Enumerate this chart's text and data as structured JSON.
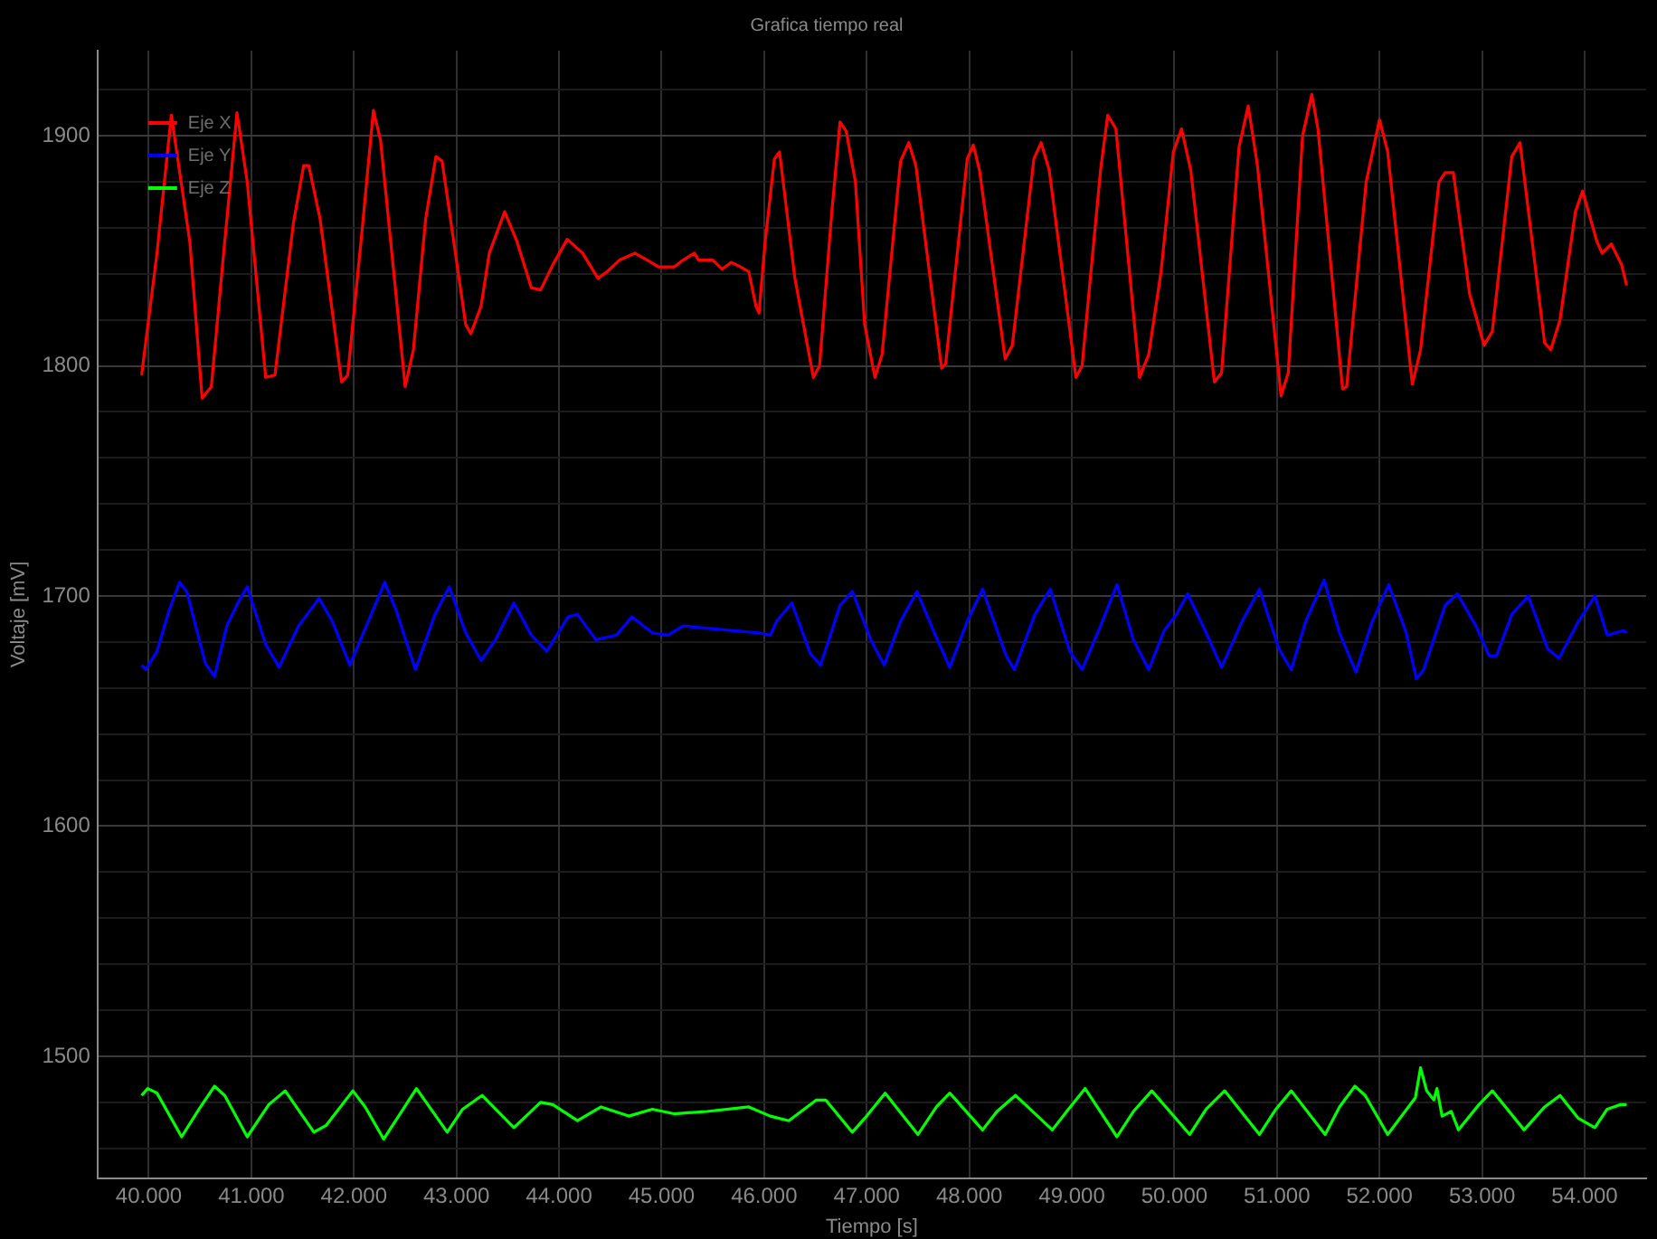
{
  "chart_data": {
    "type": "line",
    "title": "Grafica tiempo real",
    "xlabel": "Tiempo [s]",
    "ylabel": "Voltaje [mV]",
    "xlim": [
      39.5,
      54.6
    ],
    "ylim": [
      1447,
      1937
    ],
    "xticks": [
      {
        "value": 40,
        "label": "40.000"
      },
      {
        "value": 41,
        "label": "41.000"
      },
      {
        "value": 42,
        "label": "42.000"
      },
      {
        "value": 43,
        "label": "43.000"
      },
      {
        "value": 44,
        "label": "44.000"
      },
      {
        "value": 45,
        "label": "45.000"
      },
      {
        "value": 46,
        "label": "46.000"
      },
      {
        "value": 47,
        "label": "47.000"
      },
      {
        "value": 48,
        "label": "48.000"
      },
      {
        "value": 49,
        "label": "49.000"
      },
      {
        "value": 50,
        "label": "50.000"
      },
      {
        "value": 51,
        "label": "51.000"
      },
      {
        "value": 52,
        "label": "52.000"
      },
      {
        "value": 53,
        "label": "53.000"
      },
      {
        "value": 54,
        "label": "54.000"
      }
    ],
    "yticks": [
      {
        "value": 1460,
        "label": null
      },
      {
        "value": 1480,
        "label": null
      },
      1500,
      {
        "value": 1520,
        "label": null
      },
      {
        "value": 1540,
        "label": null
      },
      {
        "value": 1560,
        "label": null
      },
      {
        "value": 1580,
        "label": null
      },
      1600,
      {
        "value": 1620,
        "label": null
      },
      {
        "value": 1640,
        "label": null
      },
      {
        "value": 1660,
        "label": null
      },
      {
        "value": 1680,
        "label": null
      },
      1700,
      {
        "value": 1720,
        "label": null
      },
      {
        "value": 1740,
        "label": null
      },
      {
        "value": 1760,
        "label": null
      },
      {
        "value": 1780,
        "label": null
      },
      1800,
      {
        "value": 1820,
        "label": null
      },
      {
        "value": 1840,
        "label": null
      },
      {
        "value": 1860,
        "label": null
      },
      {
        "value": 1880,
        "label": null
      },
      1900,
      {
        "value": 1920,
        "label": null
      }
    ],
    "grid": true,
    "legend": "top left",
    "marker": "none",
    "line_style": "solid",
    "series": [
      {
        "name": "Eje X",
        "color": "#ff0000",
        "x": [
          39.93,
          40.08,
          40.22,
          40.4,
          40.52,
          40.61,
          40.73,
          40.86,
          40.96,
          41.14,
          41.23,
          41.41,
          41.51,
          41.56,
          41.67,
          41.88,
          41.94,
          42.08,
          42.19,
          42.26,
          42.5,
          42.58,
          42.7,
          42.8,
          42.86,
          43.09,
          43.14,
          43.24,
          43.32,
          43.47,
          43.59,
          43.73,
          43.82,
          43.94,
          44.08,
          44.23,
          44.38,
          44.47,
          44.59,
          44.74,
          44.86,
          44.97,
          45.12,
          45.21,
          45.32,
          45.36,
          45.5,
          45.59,
          45.68,
          45.77,
          45.85,
          45.92,
          45.95,
          46.01,
          46.1,
          46.15,
          46.3,
          46.48,
          46.54,
          46.66,
          46.74,
          46.8,
          46.89,
          46.98,
          47.08,
          47.15,
          47.33,
          47.41,
          47.48,
          47.73,
          47.77,
          47.98,
          48.04,
          48.1,
          48.35,
          48.42,
          48.63,
          48.7,
          48.78,
          49.04,
          49.1,
          49.28,
          49.35,
          49.43,
          49.66,
          49.75,
          49.87,
          49.99,
          50.07,
          50.16,
          50.39,
          50.46,
          50.63,
          50.72,
          50.81,
          51.04,
          51.11,
          51.25,
          51.34,
          51.4,
          51.64,
          51.68,
          51.87,
          52.0,
          52.08,
          52.32,
          52.4,
          52.58,
          52.64,
          52.72,
          52.88,
          53.02,
          53.1,
          53.29,
          53.37,
          53.61,
          53.67,
          53.76,
          53.91,
          53.98,
          54.12,
          54.17,
          54.26,
          54.36,
          54.41
        ],
        "values": [
          1796,
          1849,
          1909,
          1854,
          1786,
          1791,
          1849,
          1910,
          1880,
          1795,
          1796,
          1862,
          1887,
          1887,
          1864,
          1793,
          1796,
          1859,
          1911,
          1898,
          1791,
          1807,
          1864,
          1891,
          1889,
          1818,
          1814,
          1826,
          1849,
          1867,
          1854,
          1834,
          1833,
          1844,
          1855,
          1849,
          1838,
          1841,
          1846,
          1849,
          1846,
          1843,
          1843,
          1846,
          1849,
          1846,
          1846,
          1842,
          1845,
          1843,
          1841,
          1826,
          1823,
          1854,
          1890,
          1893,
          1838,
          1795,
          1800,
          1867,
          1906,
          1902,
          1880,
          1818,
          1795,
          1805,
          1889,
          1897,
          1887,
          1799,
          1801,
          1890,
          1896,
          1885,
          1803,
          1809,
          1890,
          1897,
          1885,
          1795,
          1800,
          1885,
          1909,
          1903,
          1795,
          1805,
          1841,
          1893,
          1903,
          1885,
          1793,
          1797,
          1895,
          1913,
          1887,
          1787,
          1797,
          1900,
          1918,
          1903,
          1790,
          1791,
          1880,
          1907,
          1893,
          1792,
          1807,
          1880,
          1884,
          1884,
          1831,
          1809,
          1815,
          1891,
          1897,
          1810,
          1807,
          1820,
          1867,
          1876,
          1854,
          1849,
          1853,
          1844,
          1835
        ]
      },
      {
        "name": "Eje Y",
        "color": "#0000ff",
        "x": [
          39.93,
          39.97,
          40.08,
          40.2,
          40.3,
          40.37,
          40.55,
          40.64,
          40.76,
          40.88,
          40.96,
          41.14,
          41.27,
          41.46,
          41.66,
          41.79,
          41.96,
          42.14,
          42.3,
          42.41,
          42.6,
          42.79,
          42.93,
          43.09,
          43.24,
          43.38,
          43.56,
          43.73,
          43.88,
          44.09,
          44.18,
          44.36,
          44.56,
          44.71,
          44.91,
          45.06,
          45.21,
          45.44,
          45.68,
          45.94,
          46.06,
          46.12,
          46.27,
          46.45,
          46.55,
          46.74,
          46.86,
          47.04,
          47.17,
          47.33,
          47.49,
          47.66,
          47.81,
          47.98,
          48.13,
          48.36,
          48.44,
          48.64,
          48.79,
          48.98,
          49.1,
          49.28,
          49.44,
          49.6,
          49.75,
          49.9,
          50.02,
          50.13,
          50.31,
          50.46,
          50.66,
          50.83,
          51.02,
          51.14,
          51.28,
          51.46,
          51.61,
          51.77,
          51.93,
          52.09,
          52.26,
          52.36,
          52.43,
          52.64,
          52.76,
          52.94,
          53.07,
          53.14,
          53.29,
          53.45,
          53.64,
          53.75,
          53.94,
          54.1,
          54.22,
          54.38,
          54.41
        ],
        "values": [
          1670,
          1668,
          1676,
          1694,
          1706,
          1702,
          1671,
          1665,
          1687,
          1698,
          1704,
          1679,
          1669,
          1687,
          1699,
          1689,
          1670,
          1689,
          1706,
          1694,
          1668,
          1692,
          1704,
          1684,
          1672,
          1681,
          1697,
          1683,
          1676,
          1691,
          1692,
          1681,
          1683,
          1691,
          1684,
          1683,
          1687,
          1686,
          1685,
          1684,
          1683,
          1689,
          1697,
          1675,
          1670,
          1696,
          1702,
          1681,
          1670,
          1689,
          1702,
          1684,
          1669,
          1689,
          1703,
          1674,
          1668,
          1692,
          1703,
          1676,
          1668,
          1687,
          1705,
          1681,
          1668,
          1685,
          1692,
          1701,
          1684,
          1669,
          1689,
          1703,
          1677,
          1668,
          1689,
          1707,
          1684,
          1667,
          1689,
          1705,
          1684,
          1664,
          1668,
          1696,
          1701,
          1687,
          1674,
          1674,
          1692,
          1700,
          1677,
          1673,
          1689,
          1700,
          1683,
          1685,
          1684
        ]
      },
      {
        "name": "Eje Z",
        "color": "#00ff00",
        "x": [
          39.93,
          39.99,
          40.08,
          40.32,
          40.49,
          40.64,
          40.74,
          40.96,
          41.17,
          41.33,
          41.61,
          41.73,
          41.99,
          42.11,
          42.29,
          42.61,
          42.91,
          43.06,
          43.25,
          43.56,
          43.82,
          43.94,
          44.18,
          44.41,
          44.68,
          44.91,
          45.12,
          45.44,
          45.85,
          46.06,
          46.24,
          46.51,
          46.6,
          46.86,
          46.98,
          47.18,
          47.5,
          47.68,
          47.81,
          48.13,
          48.27,
          48.45,
          48.81,
          48.95,
          49.13,
          49.44,
          49.6,
          49.78,
          50.15,
          50.31,
          50.49,
          50.83,
          50.99,
          51.14,
          51.47,
          51.61,
          51.76,
          51.86,
          52.08,
          52.35,
          52.4,
          52.46,
          52.53,
          52.56,
          52.61,
          52.7,
          52.77,
          52.97,
          53.1,
          53.41,
          53.61,
          53.76,
          53.94,
          54.1,
          54.22,
          54.35,
          54.41
        ],
        "values": [
          1483,
          1486,
          1484,
          1465,
          1477,
          1487,
          1483,
          1465,
          1479,
          1485,
          1467,
          1470,
          1485,
          1478,
          1464,
          1486,
          1467,
          1477,
          1483,
          1469,
          1480,
          1479,
          1472,
          1478,
          1474,
          1477,
          1475,
          1476,
          1478,
          1474,
          1472,
          1481,
          1481,
          1467,
          1473,
          1484,
          1466,
          1478,
          1484,
          1468,
          1476,
          1483,
          1468,
          1476,
          1486,
          1465,
          1476,
          1485,
          1466,
          1477,
          1485,
          1466,
          1477,
          1485,
          1466,
          1478,
          1487,
          1483,
          1466,
          1482,
          1495,
          1485,
          1481,
          1486,
          1474,
          1476,
          1468,
          1479,
          1485,
          1468,
          1478,
          1483,
          1473,
          1469,
          1477,
          1479,
          1479
        ]
      }
    ]
  }
}
